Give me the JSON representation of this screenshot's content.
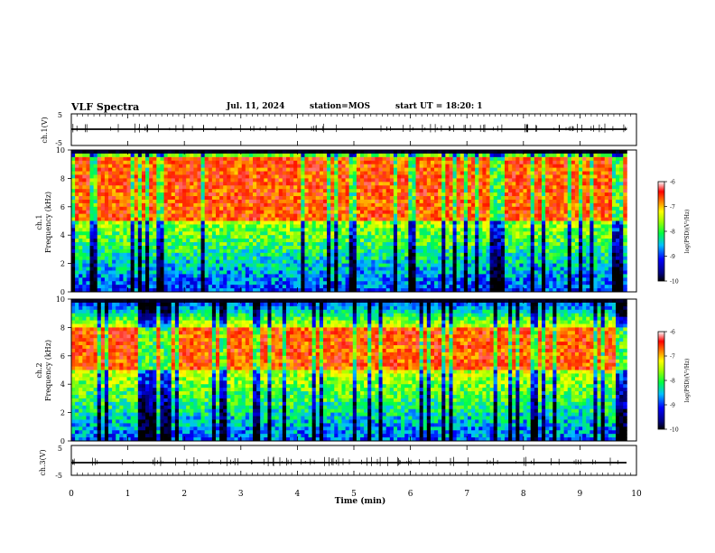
{
  "header": {
    "title": "VLF Spectra",
    "date": "Jul. 11, 2024",
    "station": "station=MOS",
    "start": "start UT = 18:20: 1"
  },
  "colors": {
    "colormap": [
      "#000000",
      "#000060",
      "#0000ff",
      "#00a0ff",
      "#00e0e0",
      "#00ff40",
      "#b0ff00",
      "#ffff00",
      "#ffa000",
      "#ff2000",
      "#ff8080",
      "#ffffff"
    ],
    "trace": "#000000"
  },
  "chart_data": [
    {
      "type": "line",
      "panel": "ch1-waveform",
      "ylabel": "ch.1(V)",
      "ylim": [
        -5,
        5
      ],
      "yticks": [
        "5",
        "-5"
      ],
      "series": [
        {
          "values_level": 0
        }
      ]
    },
    {
      "type": "heatmap",
      "panel": "ch1-spectrogram",
      "ylabel": "ch.1\nFrequency (kHz)",
      "ylim": [
        0,
        10
      ],
      "yticks": [
        "0",
        "2",
        "4",
        "6",
        "8",
        "10"
      ],
      "intensity_profile_note_free": true,
      "band_peak_khz": [
        5,
        9.5
      ],
      "colorbar": {
        "ticks": [
          "-6",
          "-7",
          "-8",
          "-9",
          "-10"
        ],
        "range": [
          -10,
          -6
        ],
        "label": "log(PSD)(V²/Hz)"
      }
    },
    {
      "type": "heatmap",
      "panel": "ch2-spectrogram",
      "ylabel": "ch.2\nFrequency (kHz)",
      "ylim": [
        0,
        10
      ],
      "yticks": [
        "0",
        "2",
        "4",
        "6",
        "8",
        "10"
      ],
      "band_peak_khz": [
        5,
        8
      ],
      "colorbar": {
        "ticks": [
          "-6",
          "-7",
          "-8",
          "-9",
          "-10"
        ],
        "range": [
          -10,
          -6
        ],
        "label": "log(PSD)(V²/Hz)"
      }
    },
    {
      "type": "line",
      "panel": "ch3-waveform",
      "ylabel": "ch.3(V)",
      "ylim": [
        -5,
        5
      ],
      "yticks": [
        "5",
        "-5"
      ],
      "series": [
        {
          "values_level": 0
        }
      ]
    }
  ],
  "xaxis": {
    "label": "Time (min)",
    "range": [
      0,
      10
    ],
    "ticks": [
      "0",
      "1",
      "2",
      "3",
      "4",
      "5",
      "6",
      "7",
      "8",
      "9",
      "10"
    ],
    "data_end": 9.83
  }
}
